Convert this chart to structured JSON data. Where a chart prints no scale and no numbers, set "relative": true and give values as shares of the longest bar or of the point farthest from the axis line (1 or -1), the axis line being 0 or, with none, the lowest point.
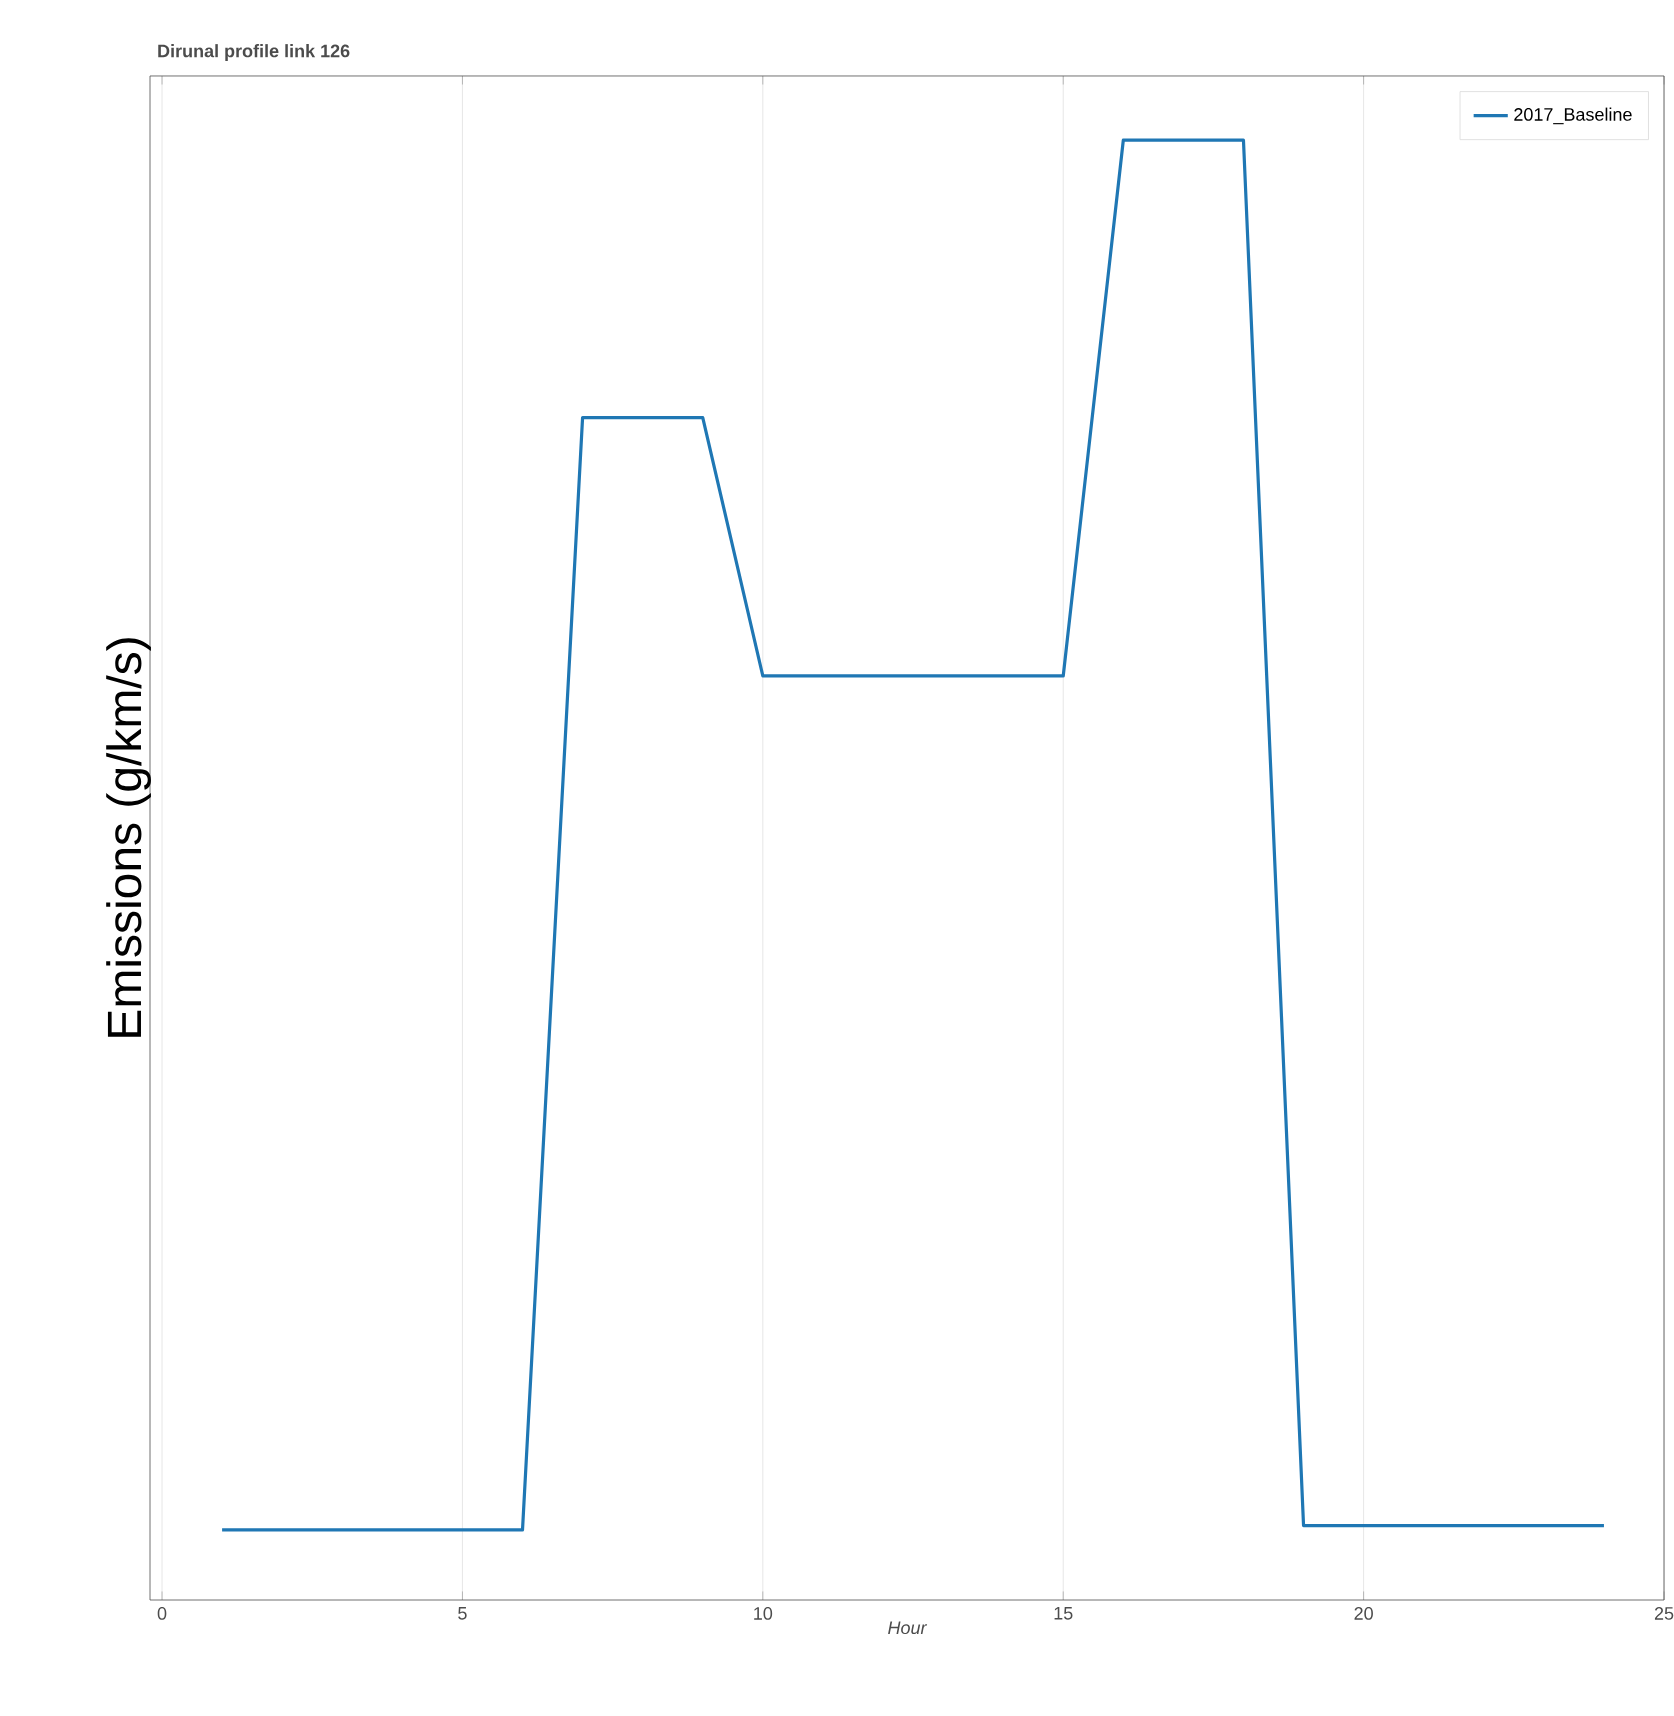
{
  "chart_data": {
    "type": "line",
    "title": "Dirunal profile link 126",
    "xlabel": "Hour",
    "ylabel": "Emissions (g/km/s)",
    "x": [
      1,
      2,
      3,
      4,
      5,
      6,
      7,
      8,
      9,
      10,
      11,
      12,
      13,
      14,
      15,
      16,
      17,
      18,
      19,
      20,
      21,
      22,
      23,
      24
    ],
    "series": [
      {
        "name": "2017_Baseline",
        "color": "#1f77b4",
        "values": [
          0.048,
          0.048,
          0.048,
          0.048,
          0.048,
          0.048,
          0.81,
          0.81,
          0.81,
          0.633,
          0.633,
          0.633,
          0.633,
          0.633,
          0.633,
          1,
          1,
          1,
          0.051,
          0.051,
          0.051,
          0.051,
          0.051,
          0.051
        ]
      }
    ],
    "relative": true,
    "xlim": [
      -0.2,
      25
    ],
    "xticks": [
      0,
      5,
      10,
      15,
      20,
      25
    ],
    "grid": "x",
    "legend": "top right",
    "marker": "none",
    "line_style": "solid"
  }
}
